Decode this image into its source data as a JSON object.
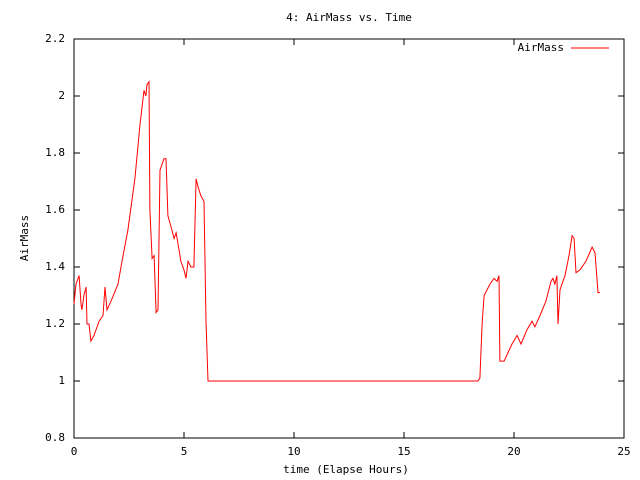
{
  "chart_data": {
    "type": "line",
    "title": "4: AirMass vs. Time",
    "x_label": "time (Elapse Hours)",
    "y_label": "AirMass",
    "x": [
      0,
      0.09,
      0.23,
      0.32,
      0.36,
      0.45,
      0.55,
      0.59,
      0.68,
      0.77,
      0.91,
      1.14,
      1.32,
      1.41,
      1.5,
      1.68,
      2.0,
      2.18,
      2.45,
      2.77,
      3.0,
      3.18,
      3.27,
      3.32,
      3.41,
      3.45,
      3.55,
      3.64,
      3.73,
      3.82,
      3.91,
      4.09,
      4.18,
      4.27,
      4.45,
      4.55,
      4.64,
      4.73,
      4.86,
      5.0,
      5.09,
      5.18,
      5.32,
      5.45,
      5.55,
      5.64,
      5.77,
      5.91,
      6.0,
      6.09,
      18.36,
      18.45,
      18.55,
      18.64,
      18.91,
      19.09,
      19.23,
      19.32,
      19.36,
      19.55,
      19.91,
      20.14,
      20.32,
      20.59,
      20.82,
      20.95,
      21.18,
      21.45,
      21.68,
      21.77,
      21.86,
      21.95,
      22.0,
      22.09,
      22.32,
      22.5,
      22.64,
      22.73,
      22.82,
      23.0,
      23.27,
      23.55,
      23.68,
      23.82,
      23.91
    ],
    "series": [
      {
        "name": "AirMass",
        "color": "#ff0000",
        "values": [
          1.27,
          1.34,
          1.37,
          1.27,
          1.25,
          1.3,
          1.33,
          1.2,
          1.2,
          1.14,
          1.16,
          1.21,
          1.23,
          1.33,
          1.25,
          1.28,
          1.34,
          1.42,
          1.53,
          1.71,
          1.9,
          2.02,
          2.0,
          2.04,
          2.05,
          1.6,
          1.43,
          1.44,
          1.24,
          1.25,
          1.74,
          1.78,
          1.78,
          1.58,
          1.53,
          1.5,
          1.52,
          1.48,
          1.42,
          1.39,
          1.36,
          1.42,
          1.4,
          1.4,
          1.71,
          1.68,
          1.65,
          1.63,
          1.21,
          1.0,
          1.0,
          1.01,
          1.2,
          1.3,
          1.34,
          1.36,
          1.35,
          1.37,
          1.07,
          1.07,
          1.13,
          1.16,
          1.13,
          1.18,
          1.21,
          1.19,
          1.23,
          1.28,
          1.35,
          1.36,
          1.34,
          1.37,
          1.2,
          1.32,
          1.37,
          1.44,
          1.51,
          1.5,
          1.38,
          1.39,
          1.42,
          1.47,
          1.45,
          1.31,
          1.31
        ]
      }
    ],
    "xlim": [
      0,
      25
    ],
    "xticks": [
      0,
      5,
      10,
      15,
      20,
      25
    ],
    "ylim": [
      0.8,
      2.2
    ],
    "yticks": [
      0.8,
      1,
      1.2,
      1.4,
      1.6,
      1.8,
      2,
      2.2
    ],
    "legend": "top-right",
    "grid": false
  }
}
